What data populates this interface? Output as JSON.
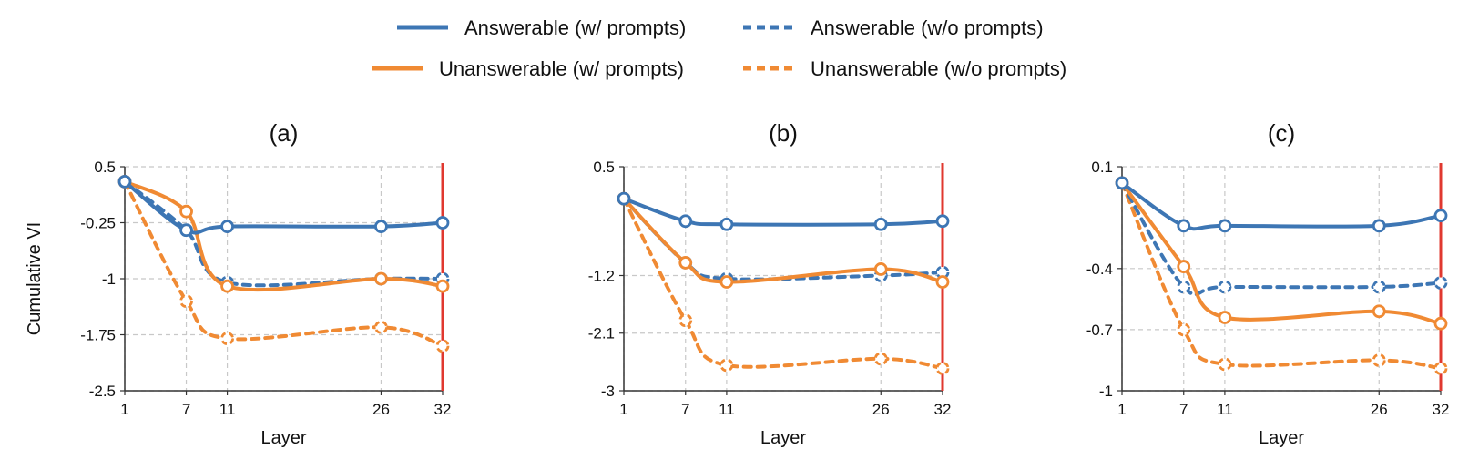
{
  "legend": [
    {
      "label": "Answerable (w/ prompts)",
      "color": "#3d76b4",
      "dash": false
    },
    {
      "label": "Answerable (w/o prompts)",
      "color": "#3d76b4",
      "dash": true
    },
    {
      "label": "Unanswerable (w/ prompts)",
      "color": "#f08a33",
      "dash": false
    },
    {
      "label": "Unanswerable (w/o prompts)",
      "color": "#f08a33",
      "dash": true
    }
  ],
  "colors": {
    "blue": "#3d76b4",
    "orange": "#f08a33",
    "marker_line": "#e0382f",
    "grid": "#c8c8c8"
  },
  "chart_data": [
    {
      "type": "line",
      "title": "(a)",
      "xlabel": "Layer",
      "ylabel": "Cumulative VI",
      "x": [
        1,
        7,
        11,
        26,
        32
      ],
      "xticks": [
        "1",
        "7",
        "11",
        "26",
        "32"
      ],
      "yticks": [
        0.5,
        -0.25,
        -1,
        -1.75,
        -2.5
      ],
      "ytick_labels": [
        "0.5",
        "-0.25",
        "-1",
        "-1.75",
        "-2.5"
      ],
      "ylim": [
        -2.5,
        0.5
      ],
      "xlim": [
        1,
        32
      ],
      "grid": true,
      "highlight_x": 32,
      "series": [
        {
          "name": "Answerable (w/ prompts)",
          "values": [
            0.3,
            -0.35,
            -0.3,
            -0.3,
            -0.25
          ]
        },
        {
          "name": "Answerable (w/o prompts)",
          "values": [
            0.3,
            -0.35,
            -1.05,
            -1.0,
            -1.0
          ]
        },
        {
          "name": "Unanswerable (w/ prompts)",
          "values": [
            0.3,
            -0.1,
            -1.1,
            -1.0,
            -1.1
          ]
        },
        {
          "name": "Unanswerable (w/o prompts)",
          "values": [
            0.3,
            -1.3,
            -1.8,
            -1.65,
            -1.9
          ]
        }
      ]
    },
    {
      "type": "line",
      "title": "(b)",
      "xlabel": "Layer",
      "ylabel": "",
      "x": [
        1,
        7,
        11,
        26,
        32
      ],
      "xticks": [
        "1",
        "7",
        "11",
        "26",
        "32"
      ],
      "yticks": [
        0.5,
        -1.2,
        -2.1,
        -3
      ],
      "ytick_labels": [
        "0.5",
        "-1.2",
        "-2.1",
        "-3"
      ],
      "ylim": [
        -3,
        0.5
      ],
      "xlim": [
        1,
        32
      ],
      "grid": true,
      "highlight_x": 32,
      "series": [
        {
          "name": "Answerable (w/ prompts)",
          "values": [
            0.0,
            -0.35,
            -0.4,
            -0.4,
            -0.35
          ]
        },
        {
          "name": "Answerable (w/o prompts)",
          "values": [
            0.0,
            -1.0,
            -1.25,
            -1.2,
            -1.15
          ]
        },
        {
          "name": "Unanswerable (w/ prompts)",
          "values": [
            0.0,
            -1.0,
            -1.3,
            -1.1,
            -1.3
          ]
        },
        {
          "name": "Unanswerable (w/o prompts)",
          "values": [
            0.0,
            -1.9,
            -2.6,
            -2.5,
            -2.65
          ]
        }
      ]
    },
    {
      "type": "line",
      "title": "(c)",
      "xlabel": "Layer",
      "ylabel": "",
      "x": [
        1,
        7,
        11,
        26,
        32
      ],
      "xticks": [
        "1",
        "7",
        "11",
        "26",
        "32"
      ],
      "yticks": [
        0.1,
        -0.4,
        -0.7,
        -1
      ],
      "ytick_labels": [
        "0.1",
        "-0.4",
        "-0.7",
        "-1"
      ],
      "ylim": [
        -1,
        0.1
      ],
      "xlim": [
        1,
        32
      ],
      "grid": true,
      "highlight_x": 32,
      "series": [
        {
          "name": "Answerable (w/ prompts)",
          "values": [
            0.02,
            -0.19,
            -0.19,
            -0.19,
            -0.14
          ]
        },
        {
          "name": "Answerable (w/o prompts)",
          "values": [
            0.02,
            -0.49,
            -0.49,
            -0.49,
            -0.47
          ]
        },
        {
          "name": "Unanswerable (w/ prompts)",
          "values": [
            0.02,
            -0.39,
            -0.64,
            -0.61,
            -0.67
          ]
        },
        {
          "name": "Unanswerable (w/o prompts)",
          "values": [
            0.02,
            -0.7,
            -0.87,
            -0.85,
            -0.89
          ]
        }
      ]
    }
  ]
}
